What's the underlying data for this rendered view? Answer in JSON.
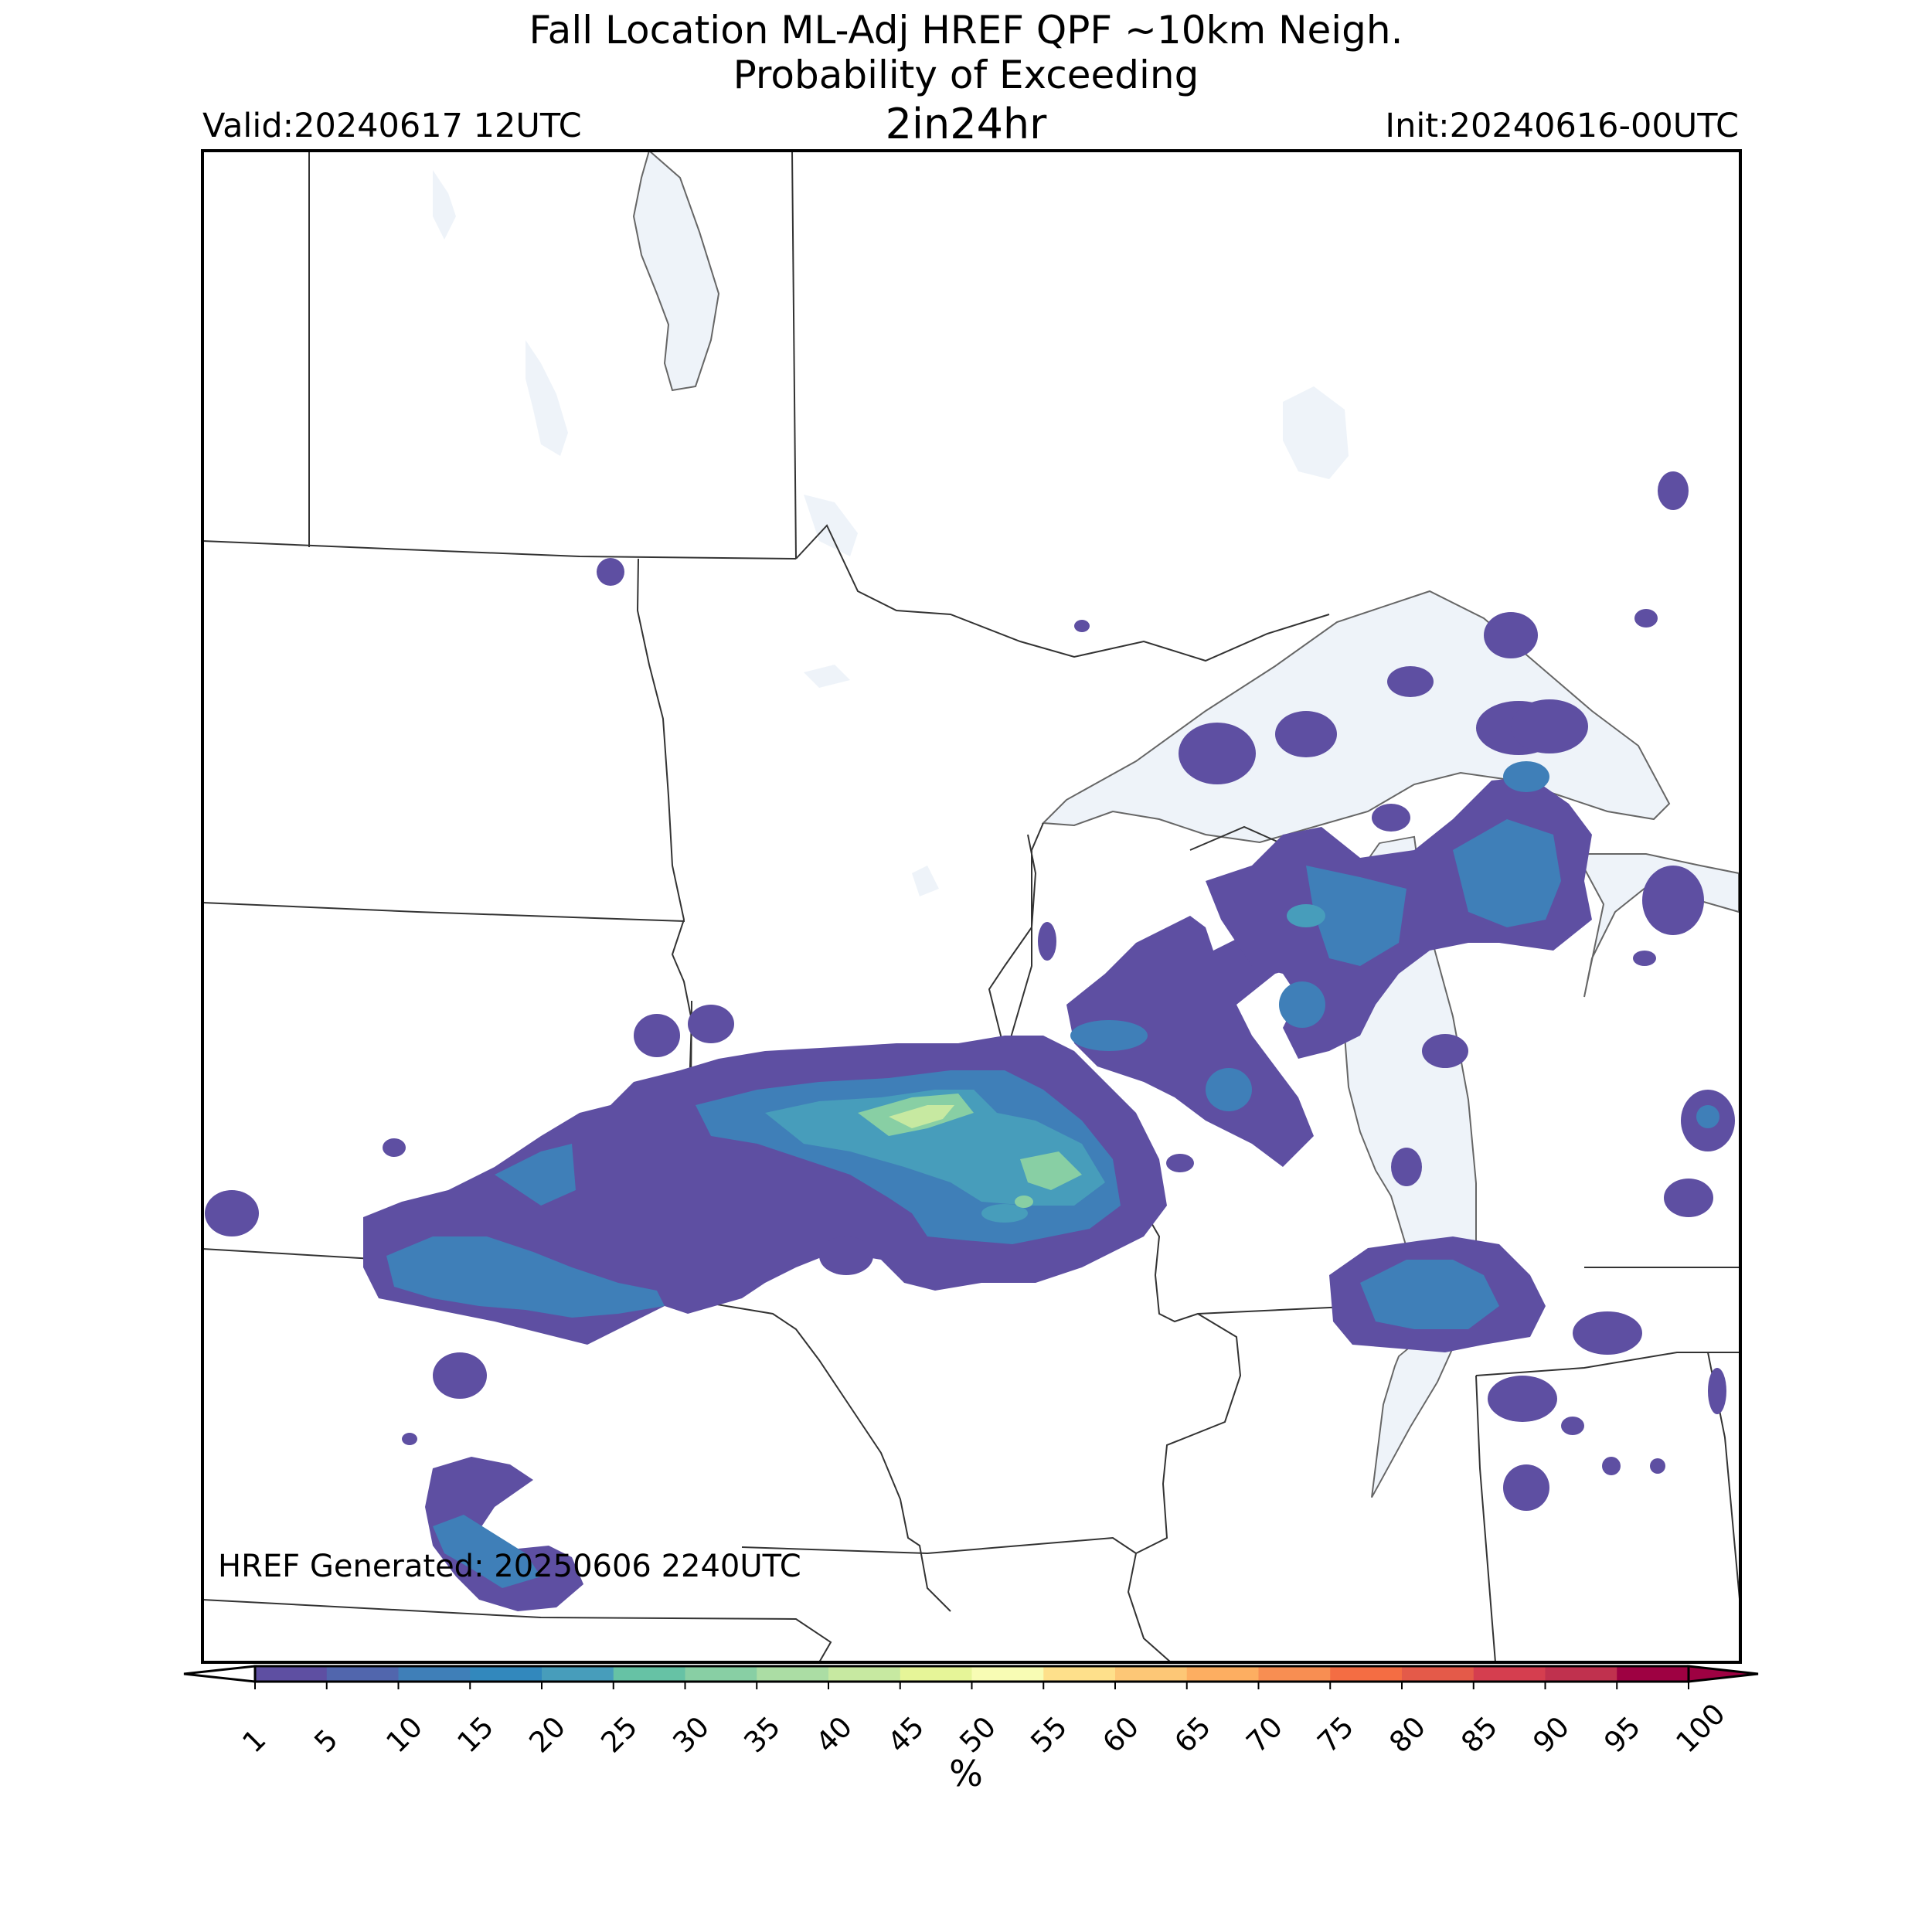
{
  "title_line1": "Fall Location ML-Adj HREF QPF ~10km Neigh.",
  "title_line2": "Probability of Exceeding",
  "threshold": "2in24hr",
  "valid": "Valid:20240617 12UTC",
  "init": "Init:20240616-00UTC",
  "footer": "HREF Generated: 20250606 2240UTC",
  "colorbar": {
    "label": "%",
    "ticks": [
      "1",
      "5",
      "10",
      "15",
      "20",
      "25",
      "30",
      "35",
      "40",
      "45",
      "50",
      "55",
      "60",
      "65",
      "70",
      "75",
      "80",
      "85",
      "90",
      "95",
      "100"
    ],
    "colors": [
      "#5e4fa2",
      "#5166ad",
      "#3f7fb8",
      "#3288bd",
      "#479dbb",
      "#66c2a5",
      "#88cfa4",
      "#abdda4",
      "#c7e9a1",
      "#e6f598",
      "#f8fcb4",
      "#fee08b",
      "#fdc776",
      "#fdae61",
      "#f88e52",
      "#f46d43",
      "#e45a49",
      "#d53e4f",
      "#c0314e",
      "#9e0142"
    ]
  },
  "colors": {
    "water": "#eef3f9",
    "boundary": "#333333",
    "prob_1": "#5e4fa2",
    "prob_10": "#3f7fb8",
    "prob_20": "#479dbb",
    "prob_30": "#88cfa4",
    "prob_40": "#c7e9a1"
  }
}
